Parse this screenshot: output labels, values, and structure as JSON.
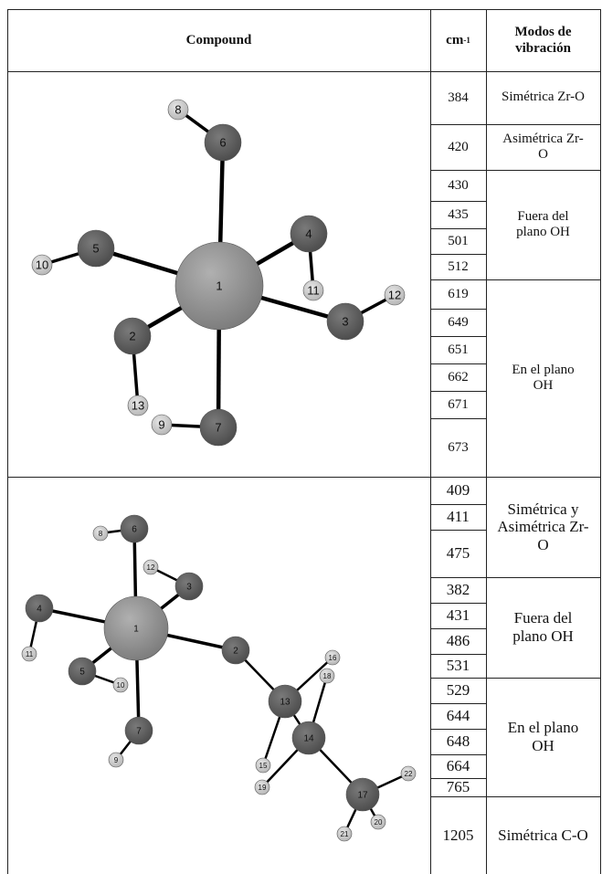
{
  "header": {
    "compound": "Compound",
    "unit": "cm",
    "unit_exponent": "-1",
    "modes": "Modos de vibración"
  },
  "rows": [
    {
      "atoms": [
        "1",
        "2",
        "3",
        "4",
        "5",
        "6",
        "7",
        "8",
        "9",
        "10",
        "11",
        "12",
        "13"
      ],
      "frequencies": [
        384,
        420,
        430,
        435,
        501,
        512,
        619,
        649,
        651,
        662,
        671,
        673
      ],
      "modes": [
        "Simétrica Zr-O",
        "Asimétrica Zr-O",
        "Fuera del plano OH",
        "En el plano OH"
      ]
    },
    {
      "atoms": [
        "1",
        "2",
        "3",
        "4",
        "5",
        "6",
        "7",
        "8",
        "9",
        "10",
        "11",
        "12",
        "13",
        "14",
        "15",
        "16",
        "17",
        "18",
        "19",
        "20",
        "21",
        "22"
      ],
      "frequencies": [
        409,
        411,
        475,
        382,
        431,
        486,
        531,
        529,
        644,
        648,
        664,
        765,
        1205
      ],
      "modes": [
        "Simétrica y Asimétrica Zr-O",
        "Fuera del plano OH",
        "En el plano OH",
        "Simétrica C-O"
      ]
    }
  ]
}
